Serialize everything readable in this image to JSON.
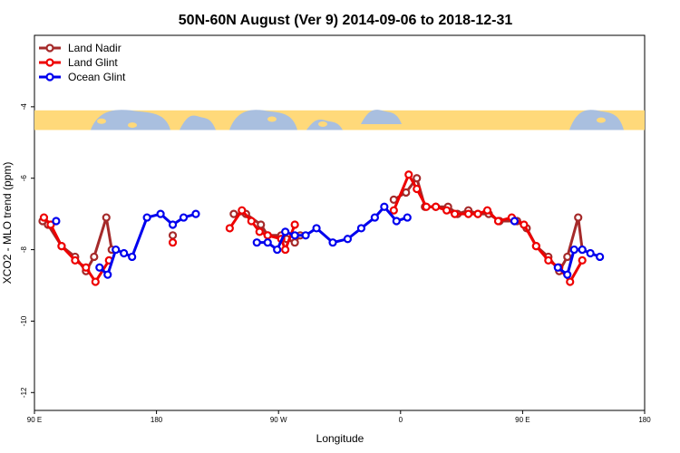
{
  "chart_data": {
    "type": "line",
    "title": "50N-60N August (Ver 9)   2014-09-06 to 2018-12-31",
    "xlabel": "Longitude",
    "ylabel": "XCO2 - MLO trend (ppm)",
    "xlim": [
      90,
      540
    ],
    "ylim": [
      -12.5,
      -2.0
    ],
    "x_ticks": [
      {
        "value": 90,
        "label": "90 E"
      },
      {
        "value": 180,
        "label": "180"
      },
      {
        "value": 270,
        "label": "90 W"
      },
      {
        "value": 360,
        "label": "0"
      },
      {
        "value": 450,
        "label": "90 E"
      },
      {
        "value": 540,
        "label": "180"
      }
    ],
    "y_ticks": [
      {
        "value": -4,
        "label": "-4"
      },
      {
        "value": -6,
        "label": "-6"
      },
      {
        "value": -8,
        "label": "-8"
      },
      {
        "value": -10,
        "label": "-10"
      },
      {
        "value": -12,
        "label": "-12"
      }
    ],
    "map_band": {
      "y_top": -4.1,
      "y_bottom": -4.65,
      "land_color": "#ffd97a",
      "ocean_color": "#a9bfdf"
    },
    "legend_position": "top-left",
    "series": [
      {
        "name": "Land Nadir",
        "color": "#a52a2a",
        "segments": [
          [
            [
              96,
              -7.2
            ],
            [
              100,
              -7.3
            ],
            [
              110,
              -7.9
            ],
            [
              120,
              -8.2
            ],
            [
              128,
              -8.6
            ],
            [
              134,
              -8.2
            ],
            [
              143,
              -7.1
            ],
            [
              147,
              -8.0
            ]
          ],
          [
            [
              192,
              -7.6
            ]
          ],
          [
            [
              237,
              -7.0
            ],
            [
              246,
              -7.0
            ],
            [
              257,
              -7.3
            ],
            [
              262,
              -7.6
            ],
            [
              272,
              -7.6
            ],
            [
              276,
              -7.7
            ],
            [
              282,
              -7.8
            ],
            [
              286,
              -7.6
            ]
          ],
          [
            [
              355,
              -6.6
            ],
            [
              364,
              -6.4
            ],
            [
              372,
              -6.0
            ],
            [
              378,
              -6.8
            ],
            [
              386,
              -6.8
            ],
            [
              395,
              -6.8
            ],
            [
              402,
              -7.0
            ],
            [
              410,
              -6.9
            ],
            [
              417,
              -7.0
            ],
            [
              425,
              -7.0
            ],
            [
              433,
              -7.2
            ],
            [
              446,
              -7.2
            ],
            [
              453,
              -7.4
            ],
            [
              460,
              -7.9
            ],
            [
              469,
              -8.2
            ],
            [
              477,
              -8.6
            ],
            [
              483,
              -8.2
            ],
            [
              491,
              -7.1
            ],
            [
              494,
              -8.0
            ]
          ]
        ]
      },
      {
        "name": "Land Glint",
        "color": "#ee0000",
        "segments": [
          [
            [
              97,
              -7.1
            ],
            [
              102,
              -7.3
            ],
            [
              110,
              -7.9
            ],
            [
              120,
              -8.3
            ],
            [
              128,
              -8.5
            ],
            [
              135,
              -8.9
            ],
            [
              145,
              -8.3
            ]
          ],
          [
            [
              192,
              -7.8
            ]
          ],
          [
            [
              234,
              -7.4
            ],
            [
              243,
              -6.9
            ],
            [
              250,
              -7.2
            ],
            [
              256,
              -7.5
            ],
            [
              262,
              -7.6
            ],
            [
              272,
              -7.7
            ],
            [
              275,
              -8.0
            ],
            [
              282,
              -7.3
            ]
          ],
          [
            [
              355,
              -6.9
            ],
            [
              366,
              -5.9
            ],
            [
              372,
              -6.3
            ],
            [
              379,
              -6.8
            ],
            [
              386,
              -6.8
            ],
            [
              394,
              -6.9
            ],
            [
              400,
              -7.0
            ],
            [
              410,
              -7.0
            ],
            [
              417,
              -7.0
            ],
            [
              424,
              -6.9
            ],
            [
              432,
              -7.2
            ],
            [
              442,
              -7.1
            ],
            [
              451,
              -7.3
            ],
            [
              460,
              -7.9
            ],
            [
              469,
              -8.3
            ],
            [
              477,
              -8.5
            ],
            [
              485,
              -8.9
            ],
            [
              494,
              -8.3
            ]
          ]
        ]
      },
      {
        "name": "Ocean Glint",
        "color": "#0000ee",
        "segments": [
          [
            [
              106,
              -7.2
            ]
          ],
          [
            [
              138,
              -8.5
            ],
            [
              144,
              -8.7
            ],
            [
              150,
              -8.0
            ],
            [
              156,
              -8.1
            ],
            [
              162,
              -8.2
            ],
            [
              173,
              -7.1
            ],
            [
              183,
              -7.0
            ],
            [
              192,
              -7.3
            ],
            [
              200,
              -7.1
            ],
            [
              209,
              -7.0
            ]
          ],
          [
            [
              254,
              -7.8
            ],
            [
              262,
              -7.8
            ],
            [
              269,
              -8.0
            ],
            [
              275,
              -7.5
            ],
            [
              282,
              -7.6
            ],
            [
              290,
              -7.6
            ],
            [
              298,
              -7.4
            ],
            [
              310,
              -7.8
            ],
            [
              321,
              -7.7
            ],
            [
              331,
              -7.4
            ],
            [
              341,
              -7.1
            ],
            [
              348,
              -6.8
            ],
            [
              357,
              -7.2
            ],
            [
              365,
              -7.1
            ]
          ],
          [
            [
              444,
              -7.2
            ]
          ],
          [
            [
              476,
              -8.5
            ],
            [
              483,
              -8.7
            ],
            [
              488,
              -8.0
            ],
            [
              494,
              -8.0
            ],
            [
              500,
              -8.1
            ],
            [
              507,
              -8.2
            ]
          ]
        ]
      }
    ]
  }
}
